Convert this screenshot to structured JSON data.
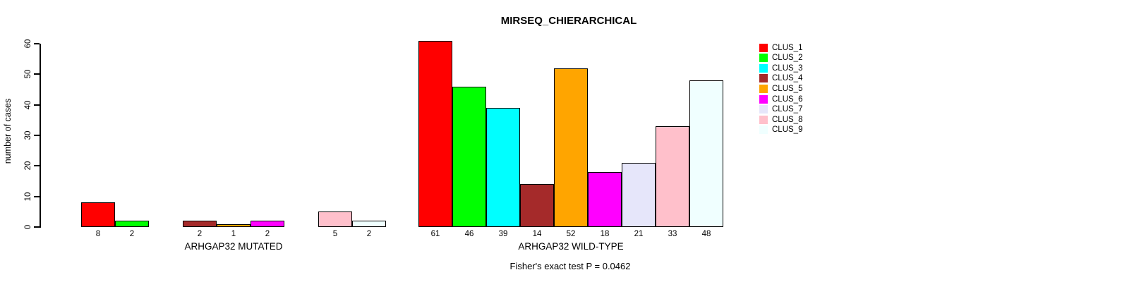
{
  "header": {
    "title": "MIRSEQ_CHIERARCHICAL"
  },
  "chart_data": {
    "type": "bar",
    "title": "MIRSEQ_CHIERARCHICAL",
    "xlabel": "",
    "ylabel": "number of cases",
    "ylim": [
      0,
      60
    ],
    "yticks": [
      0,
      10,
      20,
      30,
      40,
      50,
      60
    ],
    "grid": false,
    "legend_position": "right",
    "bar_outline_color": "#000000",
    "series": [
      {
        "name": "CLUS_1",
        "color": "#FF0000"
      },
      {
        "name": "CLUS_2",
        "color": "#00FF00"
      },
      {
        "name": "CLUS_3",
        "color": "#00FFFF"
      },
      {
        "name": "CLUS_4",
        "color": "#A52A2A"
      },
      {
        "name": "CLUS_5",
        "color": "#FFA500"
      },
      {
        "name": "CLUS_6",
        "color": "#FF00FF"
      },
      {
        "name": "CLUS_7",
        "color": "#E6E6FA"
      },
      {
        "name": "CLUS_8",
        "color": "#FFC0CB"
      },
      {
        "name": "CLUS_9",
        "color": "#F0FFFF"
      }
    ],
    "groups": [
      {
        "label": "ARHGAP32 MUTATED",
        "values": [
          8,
          2,
          0,
          2,
          1,
          2,
          0,
          5,
          2
        ]
      },
      {
        "label": "ARHGAP32 WILD-TYPE",
        "values": [
          61,
          46,
          39,
          14,
          52,
          18,
          21,
          33,
          48
        ]
      }
    ],
    "annotation": "Fisher's exact test P = 0.0462"
  }
}
